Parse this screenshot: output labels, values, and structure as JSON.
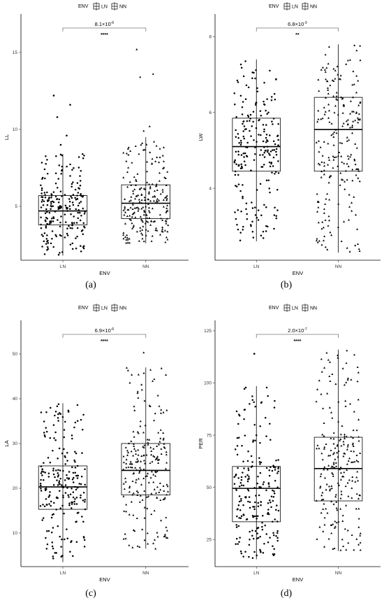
{
  "chart_data": [
    {
      "type": "box",
      "caption": "(a)",
      "legend_title": "ENV",
      "legend_items": [
        "LN",
        "NN"
      ],
      "xlabel": "ENV",
      "ylabel": "LL",
      "categories": [
        "LN",
        "NN"
      ],
      "ylim": [
        1.5,
        17.5
      ],
      "yticks": [
        5,
        10,
        15
      ],
      "boxes": [
        {
          "name": "LN",
          "q1": 3.8,
          "median": 4.7,
          "q3": 5.7,
          "whisker_low": 1.8,
          "whisker_high": 8.4,
          "outliers": [
            9.0,
            9.6,
            10.8,
            11.6,
            12.2
          ]
        },
        {
          "name": "NN",
          "q1": 4.2,
          "median": 5.2,
          "q3": 6.4,
          "whisker_low": 2.6,
          "whisker_high": 9.5,
          "outliers": [
            9.9,
            10.2,
            13.4,
            13.6,
            15.2
          ]
        }
      ],
      "comparison": {
        "pvalue_base": "8.1×10",
        "pvalue_exp": "-6",
        "stars": "****"
      },
      "jitter_n": 220
    },
    {
      "type": "box",
      "caption": "(b)",
      "legend_title": "ENV",
      "legend_items": [
        "LN",
        "NN"
      ],
      "xlabel": "ENV",
      "ylabel": "LW",
      "categories": [
        "LN",
        "NN"
      ],
      "ylim": [
        2.1,
        8.6
      ],
      "yticks": [
        4,
        6,
        8
      ],
      "boxes": [
        {
          "name": "LN",
          "q1": 4.45,
          "median": 5.1,
          "q3": 5.85,
          "whisker_low": 2.6,
          "whisker_high": 7.4,
          "outliers": []
        },
        {
          "name": "NN",
          "q1": 4.45,
          "median": 5.55,
          "q3": 6.4,
          "whisker_low": 2.3,
          "whisker_high": 7.8,
          "outliers": []
        }
      ],
      "comparison": {
        "pvalue_base": "6.8×10",
        "pvalue_exp": "-3",
        "stars": "**"
      },
      "jitter_n": 220
    },
    {
      "type": "box",
      "caption": "(c)",
      "legend_title": "ENV",
      "legend_items": [
        "LN",
        "NN"
      ],
      "xlabel": "ENV",
      "ylabel": "LA",
      "categories": [
        "LN",
        "NN"
      ],
      "ylim": [
        2.5,
        57.5
      ],
      "yticks": [
        10,
        20,
        30,
        40,
        50
      ],
      "boxes": [
        {
          "name": "LN",
          "q1": 15.3,
          "median": 20.3,
          "q3": 25.0,
          "whisker_low": 3.5,
          "whisker_high": 39.0,
          "outliers": []
        },
        {
          "name": "NN",
          "q1": 18.5,
          "median": 24.0,
          "q3": 30.0,
          "whisker_low": 6.5,
          "whisker_high": 47.0,
          "outliers": [
            50.3
          ]
        }
      ],
      "comparison": {
        "pvalue_base": "6.9×10",
        "pvalue_exp": "-6",
        "stars": "****"
      },
      "jitter_n": 220
    },
    {
      "type": "box",
      "caption": "(d)",
      "legend_title": "ENV",
      "legend_items": [
        "LN",
        "NN"
      ],
      "xlabel": "ENV",
      "ylabel": "PER",
      "categories": [
        "LN",
        "NN"
      ],
      "ylim": [
        12,
        130
      ],
      "yticks": [
        25,
        50,
        75,
        100,
        125
      ],
      "boxes": [
        {
          "name": "LN",
          "q1": 33.5,
          "median": 49.5,
          "q3": 60.0,
          "whisker_low": 15.5,
          "whisker_high": 98.5,
          "outliers": [
            114.0
          ]
        },
        {
          "name": "NN",
          "q1": 43.5,
          "median": 59.0,
          "q3": 74.0,
          "whisker_low": 19.5,
          "whisker_high": 116.0,
          "outliers": []
        }
      ],
      "comparison": {
        "pvalue_base": "2.0×10",
        "pvalue_exp": "-7",
        "stars": "****"
      },
      "jitter_n": 220
    }
  ]
}
